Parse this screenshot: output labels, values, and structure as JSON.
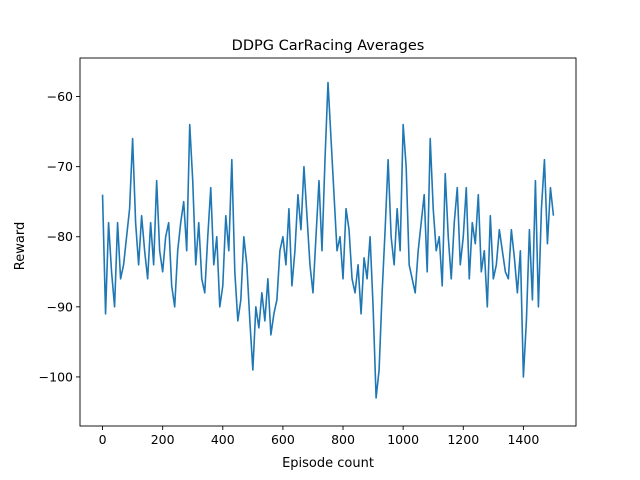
{
  "chart_data": {
    "type": "line",
    "title": "DDPG CarRacing Averages",
    "xlabel": "Episode count",
    "ylabel": "Reward",
    "xlim": [
      -75,
      1575
    ],
    "ylim": [
      -107,
      -54.5
    ],
    "xticks": [
      0,
      200,
      400,
      600,
      800,
      1000,
      1200,
      1400
    ],
    "yticks": [
      -100,
      -90,
      -80,
      -70,
      -60
    ],
    "grid": false,
    "legend": "none",
    "series": [
      {
        "color": "#1f77b4",
        "x": [
          0,
          10,
          20,
          30,
          40,
          50,
          60,
          70,
          80,
          90,
          100,
          110,
          120,
          130,
          140,
          150,
          160,
          170,
          180,
          190,
          200,
          210,
          220,
          230,
          240,
          250,
          260,
          270,
          280,
          290,
          300,
          310,
          320,
          330,
          340,
          350,
          360,
          370,
          380,
          390,
          400,
          410,
          420,
          430,
          440,
          450,
          460,
          470,
          480,
          490,
          500,
          510,
          520,
          530,
          540,
          550,
          560,
          570,
          580,
          590,
          600,
          610,
          620,
          630,
          640,
          650,
          660,
          670,
          680,
          690,
          700,
          710,
          720,
          730,
          740,
          750,
          760,
          770,
          780,
          790,
          800,
          810,
          820,
          830,
          840,
          850,
          860,
          870,
          880,
          890,
          900,
          910,
          920,
          930,
          940,
          950,
          960,
          970,
          980,
          990,
          1000,
          1010,
          1020,
          1030,
          1040,
          1050,
          1060,
          1070,
          1080,
          1090,
          1100,
          1110,
          1120,
          1130,
          1140,
          1150,
          1160,
          1170,
          1180,
          1190,
          1200,
          1210,
          1220,
          1230,
          1240,
          1250,
          1260,
          1270,
          1280,
          1290,
          1300,
          1310,
          1320,
          1330,
          1340,
          1350,
          1360,
          1370,
          1380,
          1390,
          1400,
          1410,
          1420,
          1430,
          1440,
          1450,
          1460,
          1470,
          1480,
          1490,
          1500
        ],
        "values": [
          -74,
          -91,
          -78,
          -85,
          -90,
          -78,
          -86,
          -84,
          -80,
          -76,
          -66,
          -78,
          -84,
          -77,
          -82,
          -86,
          -78,
          -84,
          -72,
          -82,
          -85,
          -80,
          -78,
          -87,
          -90,
          -82,
          -78,
          -75,
          -82,
          -64,
          -72,
          -84,
          -78,
          -86,
          -88,
          -80,
          -73,
          -84,
          -80,
          -90,
          -87,
          -77,
          -82,
          -69,
          -85,
          -92,
          -89,
          -80,
          -84,
          -92,
          -99,
          -90,
          -93,
          -88,
          -92,
          -86,
          -94,
          -91,
          -89,
          -82,
          -80,
          -84,
          -76,
          -87,
          -82,
          -74,
          -79,
          -70,
          -77,
          -84,
          -88,
          -80,
          -72,
          -82,
          -69,
          -58,
          -66,
          -74,
          -82,
          -80,
          -86,
          -76,
          -79,
          -86,
          -88,
          -84,
          -91,
          -83,
          -86,
          -80,
          -90,
          -103,
          -99,
          -88,
          -79,
          -69,
          -80,
          -84,
          -76,
          -82,
          -64,
          -70,
          -84,
          -86,
          -88,
          -82,
          -78,
          -74,
          -85,
          -66,
          -76,
          -82,
          -80,
          -87,
          -71,
          -80,
          -86,
          -78,
          -73,
          -84,
          -80,
          -73,
          -86,
          -78,
          -81,
          -74,
          -85,
          -82,
          -90,
          -77,
          -86,
          -84,
          -79,
          -82,
          -85,
          -86,
          -79,
          -83,
          -88,
          -82,
          -100,
          -92,
          -79,
          -89,
          -72,
          -90,
          -76,
          -69,
          -81,
          -73,
          -77
        ]
      }
    ]
  }
}
